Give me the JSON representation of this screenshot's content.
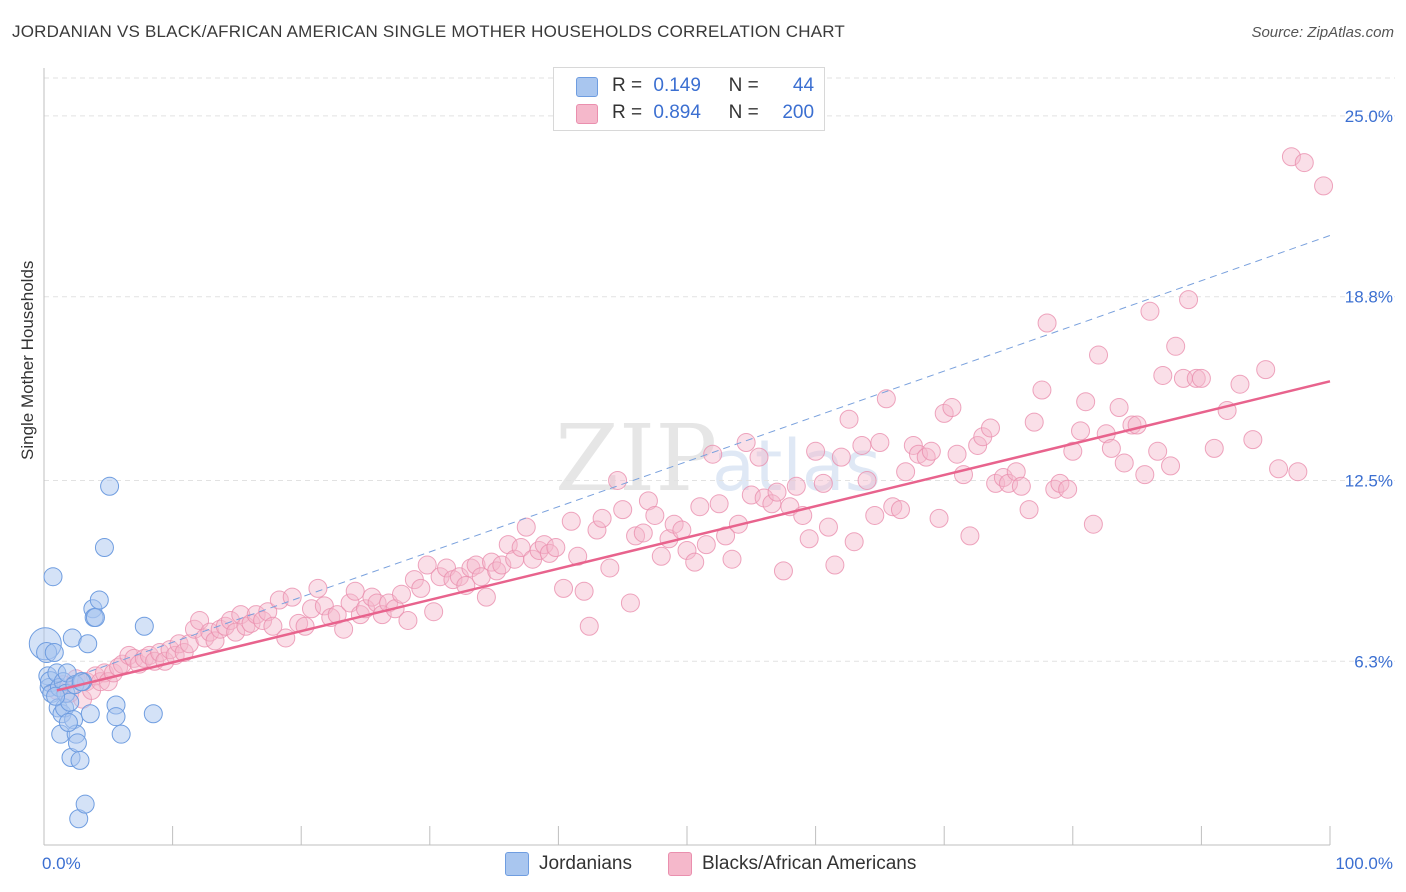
{
  "title": "JORDANIAN VS BLACK/AFRICAN AMERICAN SINGLE MOTHER HOUSEHOLDS CORRELATION CHART",
  "source": "Source: ZipAtlas.com",
  "colors": {
    "jordanians_fill": "#a9c6ef",
    "jordanians_stroke": "#6f9de0",
    "blacks_fill": "#f5b8cb",
    "blacks_stroke": "#ea8fae",
    "blacks_trend": "#e8638d",
    "jordanians_trend": "#7aa1dd",
    "tick_label": "#3b6fd1",
    "grid": "#e2e2e2"
  },
  "legend": {
    "rows": [
      {
        "r_label": "R =",
        "r_value": "0.149",
        "n_label": "N =",
        "n_value": "44"
      },
      {
        "r_label": "R =",
        "r_value": "0.894",
        "n_label": "N =",
        "n_value": "200"
      }
    ]
  },
  "bottom_legend": {
    "jordanians": "Jordanians",
    "blacks": "Blacks/African Americans"
  },
  "chart_data": {
    "type": "scatter",
    "title": "JORDANIAN VS BLACK/AFRICAN AMERICAN SINGLE MOTHER HOUSEHOLDS CORRELATION CHART",
    "xlabel": "",
    "ylabel": "Single Mother Households",
    "xlim": [
      0,
      100
    ],
    "ylim": [
      0,
      26.3
    ],
    "x_tick_labels": [
      "0.0%",
      "100.0%"
    ],
    "y_ticks": [
      6.3,
      12.5,
      18.8,
      25.0
    ],
    "y_tick_labels": [
      "6.3%",
      "12.5%",
      "18.8%",
      "25.0%"
    ],
    "grid": "horizontal dashed",
    "legend_position": "top-center",
    "series": [
      {
        "name": "Jordanians",
        "trend": {
          "x": [
            0,
            100
          ],
          "y": [
            5.4,
            20.9
          ]
        },
        "points": [
          [
            0.1,
            6.9,
            16
          ],
          [
            0.2,
            6.6,
            10
          ],
          [
            0.3,
            5.8,
            9
          ],
          [
            0.4,
            5.4,
            9
          ],
          [
            0.5,
            5.6,
            10
          ],
          [
            0.6,
            5.2,
            9
          ],
          [
            0.7,
            9.2,
            9
          ],
          [
            0.8,
            6.6,
            9
          ],
          [
            1.0,
            5.9,
            9
          ],
          [
            1.1,
            4.7,
            9
          ],
          [
            1.2,
            5.4,
            9
          ],
          [
            1.3,
            3.8,
            9
          ],
          [
            1.4,
            4.5,
            9
          ],
          [
            1.5,
            5.6,
            9
          ],
          [
            1.6,
            4.7,
            9
          ],
          [
            1.7,
            5.2,
            9
          ],
          [
            1.8,
            5.9,
            9
          ],
          [
            2.0,
            4.9,
            9
          ],
          [
            2.1,
            3.0,
            9
          ],
          [
            2.2,
            7.1,
            9
          ],
          [
            2.3,
            4.3,
            9
          ],
          [
            2.4,
            5.5,
            9
          ],
          [
            2.5,
            3.8,
            9
          ],
          [
            2.6,
            3.5,
            9
          ],
          [
            2.7,
            0.9,
            9
          ],
          [
            2.8,
            2.9,
            9
          ],
          [
            3.0,
            5.6,
            9
          ],
          [
            3.2,
            1.4,
            9
          ],
          [
            3.4,
            6.9,
            9
          ],
          [
            3.6,
            4.5,
            9
          ],
          [
            3.8,
            8.1,
            9
          ],
          [
            3.9,
            7.8,
            9
          ],
          [
            4.0,
            7.8,
            9
          ],
          [
            4.3,
            8.4,
            9
          ],
          [
            4.7,
            10.2,
            9
          ],
          [
            5.1,
            12.3,
            9
          ],
          [
            5.6,
            4.8,
            9
          ],
          [
            5.6,
            4.4,
            9
          ],
          [
            6.0,
            3.8,
            9
          ],
          [
            7.8,
            7.5,
            9
          ],
          [
            8.5,
            4.5,
            9
          ],
          [
            1.9,
            4.2,
            9
          ],
          [
            0.9,
            5.1,
            9
          ],
          [
            2.9,
            5.6,
            9
          ]
        ]
      },
      {
        "name": "Blacks/African Americans",
        "trend": {
          "x": [
            1,
            100
          ],
          "y": [
            5.3,
            15.9
          ]
        },
        "points": [
          [
            1.0,
            5.3
          ],
          [
            1.5,
            5.5
          ],
          [
            2.0,
            5.2
          ],
          [
            2.5,
            5.7
          ],
          [
            3.0,
            5.0
          ],
          [
            3.3,
            5.6
          ],
          [
            3.7,
            5.3
          ],
          [
            4.0,
            5.8
          ],
          [
            4.4,
            5.6
          ],
          [
            4.7,
            5.9
          ],
          [
            5.0,
            5.6
          ],
          [
            5.4,
            5.9
          ],
          [
            5.8,
            6.1
          ],
          [
            6.1,
            6.2
          ],
          [
            6.6,
            6.5
          ],
          [
            7.0,
            6.4
          ],
          [
            7.4,
            6.2
          ],
          [
            7.8,
            6.4
          ],
          [
            8.2,
            6.5
          ],
          [
            8.6,
            6.3
          ],
          [
            9.0,
            6.6
          ],
          [
            9.4,
            6.3
          ],
          [
            9.8,
            6.7
          ],
          [
            10.2,
            6.5
          ],
          [
            10.5,
            6.9
          ],
          [
            10.9,
            6.6
          ],
          [
            11.3,
            6.9
          ],
          [
            11.7,
            7.4
          ],
          [
            12.1,
            7.7
          ],
          [
            12.5,
            7.1
          ],
          [
            12.9,
            7.3
          ],
          [
            13.3,
            7.0
          ],
          [
            13.7,
            7.4
          ],
          [
            14.1,
            7.5
          ],
          [
            14.5,
            7.7
          ],
          [
            14.9,
            7.3
          ],
          [
            15.3,
            7.9
          ],
          [
            15.7,
            7.5
          ],
          [
            16.1,
            7.6
          ],
          [
            16.5,
            7.9
          ],
          [
            17.0,
            7.7
          ],
          [
            17.4,
            8.0
          ],
          [
            17.8,
            7.5
          ],
          [
            18.3,
            8.4
          ],
          [
            18.8,
            7.1
          ],
          [
            19.3,
            8.5
          ],
          [
            19.8,
            7.6
          ],
          [
            20.3,
            7.5
          ],
          [
            20.8,
            8.1
          ],
          [
            21.3,
            8.8
          ],
          [
            21.8,
            8.2
          ],
          [
            22.3,
            7.8
          ],
          [
            22.8,
            7.9
          ],
          [
            23.3,
            7.4
          ],
          [
            23.8,
            8.3
          ],
          [
            24.2,
            8.7
          ],
          [
            24.6,
            7.9
          ],
          [
            25.0,
            8.1
          ],
          [
            25.5,
            8.5
          ],
          [
            25.9,
            8.3
          ],
          [
            26.3,
            7.9
          ],
          [
            26.8,
            8.3
          ],
          [
            27.3,
            8.1
          ],
          [
            27.8,
            8.6
          ],
          [
            28.3,
            7.7
          ],
          [
            28.8,
            9.1
          ],
          [
            29.3,
            8.8
          ],
          [
            29.8,
            9.6
          ],
          [
            30.3,
            8.0
          ],
          [
            30.8,
            9.2
          ],
          [
            31.3,
            9.5
          ],
          [
            31.8,
            9.1
          ],
          [
            32.3,
            9.2
          ],
          [
            32.8,
            8.9
          ],
          [
            33.2,
            9.5
          ],
          [
            33.6,
            9.6
          ],
          [
            34.0,
            9.2
          ],
          [
            34.4,
            8.5
          ],
          [
            34.8,
            9.7
          ],
          [
            35.2,
            9.4
          ],
          [
            35.6,
            9.6
          ],
          [
            36.1,
            10.3
          ],
          [
            36.6,
            9.8
          ],
          [
            37.1,
            10.2
          ],
          [
            37.5,
            10.9
          ],
          [
            38.0,
            9.8
          ],
          [
            38.5,
            10.1
          ],
          [
            38.9,
            10.3
          ],
          [
            39.3,
            10.0
          ],
          [
            39.8,
            10.2
          ],
          [
            40.4,
            8.8
          ],
          [
            41.0,
            11.1
          ],
          [
            41.5,
            9.9
          ],
          [
            42.0,
            8.7
          ],
          [
            42.4,
            7.5
          ],
          [
            43.0,
            10.8
          ],
          [
            43.4,
            11.2
          ],
          [
            44.0,
            9.5
          ],
          [
            44.6,
            12.5
          ],
          [
            45.0,
            11.5
          ],
          [
            45.6,
            8.3
          ],
          [
            46.0,
            10.6
          ],
          [
            46.6,
            10.7
          ],
          [
            47.0,
            11.8
          ],
          [
            47.5,
            11.3
          ],
          [
            48.0,
            9.9
          ],
          [
            48.6,
            10.5
          ],
          [
            49.0,
            11.0
          ],
          [
            49.6,
            10.8
          ],
          [
            50.0,
            10.1
          ],
          [
            50.6,
            9.7
          ],
          [
            51.0,
            11.6
          ],
          [
            51.5,
            10.3
          ],
          [
            52.0,
            13.4
          ],
          [
            52.5,
            11.7
          ],
          [
            53.0,
            10.6
          ],
          [
            53.5,
            9.8
          ],
          [
            54.0,
            11.0
          ],
          [
            54.6,
            13.8
          ],
          [
            55.0,
            12.0
          ],
          [
            55.6,
            13.3
          ],
          [
            56.0,
            11.9
          ],
          [
            56.6,
            11.7
          ],
          [
            57.0,
            12.1
          ],
          [
            57.5,
            9.4
          ],
          [
            58.0,
            11.6
          ],
          [
            58.5,
            12.3
          ],
          [
            59.0,
            11.3
          ],
          [
            59.5,
            10.5
          ],
          [
            60.0,
            13.5
          ],
          [
            60.6,
            12.4
          ],
          [
            61.0,
            10.9
          ],
          [
            61.5,
            9.6
          ],
          [
            62.0,
            13.3
          ],
          [
            62.6,
            14.6
          ],
          [
            63.0,
            10.4
          ],
          [
            63.6,
            13.7
          ],
          [
            64.0,
            12.5
          ],
          [
            64.6,
            11.3
          ],
          [
            65.0,
            13.8
          ],
          [
            65.5,
            15.3
          ],
          [
            66.0,
            11.6
          ],
          [
            66.6,
            11.5
          ],
          [
            67.0,
            12.8
          ],
          [
            67.6,
            13.7
          ],
          [
            68.0,
            13.4
          ],
          [
            68.6,
            13.3
          ],
          [
            69.0,
            13.5
          ],
          [
            69.6,
            11.2
          ],
          [
            70.0,
            14.8
          ],
          [
            70.6,
            15.0
          ],
          [
            71.0,
            13.4
          ],
          [
            71.5,
            12.7
          ],
          [
            72.0,
            10.6
          ],
          [
            72.6,
            13.7
          ],
          [
            73.0,
            14.0
          ],
          [
            73.6,
            14.3
          ],
          [
            74.0,
            12.4
          ],
          [
            74.6,
            12.6
          ],
          [
            75.0,
            12.4
          ],
          [
            75.6,
            12.8
          ],
          [
            76.0,
            12.3
          ],
          [
            76.6,
            11.5
          ],
          [
            77.0,
            14.5
          ],
          [
            77.6,
            15.6
          ],
          [
            78.0,
            17.9
          ],
          [
            78.6,
            12.2
          ],
          [
            79.0,
            12.4
          ],
          [
            79.6,
            12.2
          ],
          [
            80.0,
            13.5
          ],
          [
            80.6,
            14.2
          ],
          [
            81.0,
            15.2
          ],
          [
            81.6,
            11.0
          ],
          [
            82.0,
            16.8
          ],
          [
            82.6,
            14.1
          ],
          [
            83.0,
            13.6
          ],
          [
            83.6,
            15.0
          ],
          [
            84.0,
            13.1
          ],
          [
            84.6,
            14.4
          ],
          [
            85.0,
            14.4
          ],
          [
            85.6,
            12.7
          ],
          [
            86.0,
            18.3
          ],
          [
            86.6,
            13.5
          ],
          [
            87.0,
            16.1
          ],
          [
            87.6,
            13.0
          ],
          [
            88.0,
            17.1
          ],
          [
            88.6,
            16.0
          ],
          [
            89.0,
            18.7
          ],
          [
            89.6,
            16.0
          ],
          [
            90.0,
            16.0
          ],
          [
            97.0,
            23.6
          ],
          [
            98.0,
            23.4
          ],
          [
            99.5,
            22.6
          ],
          [
            91.0,
            13.6
          ],
          [
            92.0,
            14.9
          ],
          [
            93.0,
            15.8
          ],
          [
            94.0,
            13.9
          ],
          [
            95.0,
            16.3
          ],
          [
            96.0,
            12.9
          ],
          [
            97.5,
            12.8
          ]
        ]
      }
    ]
  }
}
